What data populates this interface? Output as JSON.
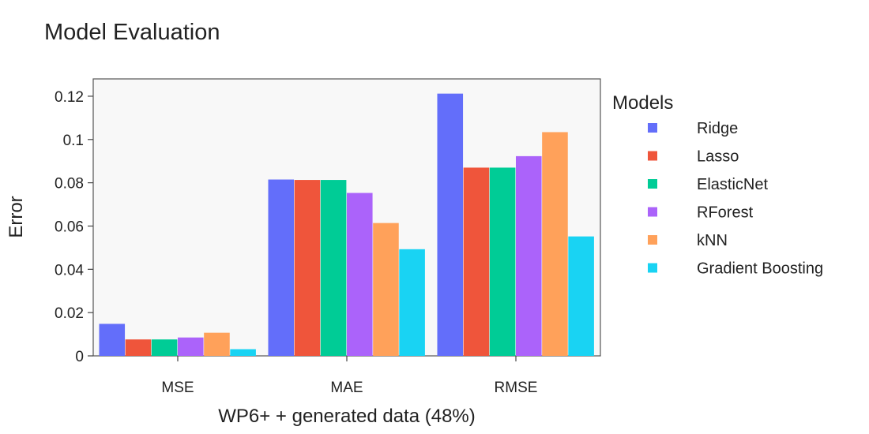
{
  "chart_data": {
    "type": "bar",
    "title": "Model Evaluation",
    "xlabel": "WP6+ + generated data (48%)",
    "ylabel": "Error",
    "categories": [
      "MSE",
      "MAE",
      "RMSE"
    ],
    "ylim": [
      0,
      0.128
    ],
    "yticks": [
      0,
      0.02,
      0.04,
      0.06,
      0.08,
      0.1,
      0.12
    ],
    "ytick_labels": [
      "0",
      "0.02",
      "0.04",
      "0.06",
      "0.08",
      "0.1",
      "0.12"
    ],
    "legend": {
      "title": "Models",
      "placement": "right"
    },
    "grid": false,
    "series": [
      {
        "name": "Ridge",
        "color": "#636efa",
        "values": [
          0.0148,
          0.0815,
          0.1212
        ]
      },
      {
        "name": "Lasso",
        "color": "#ef553b",
        "values": [
          0.0076,
          0.0813,
          0.087
        ]
      },
      {
        "name": "ElasticNet",
        "color": "#00cc96",
        "values": [
          0.0076,
          0.0813,
          0.087
        ]
      },
      {
        "name": "RForest",
        "color": "#ab63fa",
        "values": [
          0.0085,
          0.0753,
          0.0923
        ]
      },
      {
        "name": "kNN",
        "color": "#ffa15a",
        "values": [
          0.0107,
          0.0614,
          0.1034
        ]
      },
      {
        "name": "Gradient Boosting",
        "color": "#19d3f3",
        "values": [
          0.0031,
          0.0493,
          0.0552
        ]
      }
    ]
  }
}
